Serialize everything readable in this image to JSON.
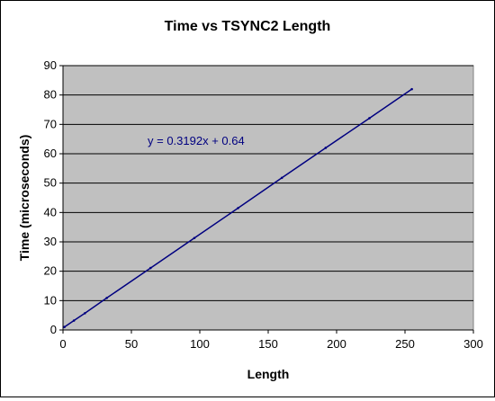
{
  "chart_data": {
    "type": "line",
    "title": "Time vs TSYNC2 Length",
    "xlabel": "Length",
    "ylabel": "Time (microseconds)",
    "xlim": [
      0,
      300
    ],
    "ylim": [
      0,
      90
    ],
    "x_ticks": [
      "0",
      "50",
      "100",
      "150",
      "200",
      "250",
      "300"
    ],
    "y_ticks": [
      "0",
      "10",
      "20",
      "30",
      "40",
      "50",
      "60",
      "70",
      "80",
      "90"
    ],
    "grid": "horizontal",
    "legend": "none",
    "series": [
      {
        "x": [
          1,
          8,
          16,
          32,
          64,
          96,
          128,
          160,
          192,
          224,
          255
        ],
        "y": [
          1.0,
          3.2,
          5.7,
          10.9,
          21.1,
          31.3,
          41.5,
          51.8,
          62.0,
          72.1,
          82.0
        ]
      }
    ],
    "trendline_label": "y = 0.3192x + 0.64",
    "colors": {
      "plot_background": "#c0c0c0",
      "series": "#000080",
      "grid": "#000000",
      "trendline_label": "#000080"
    }
  }
}
